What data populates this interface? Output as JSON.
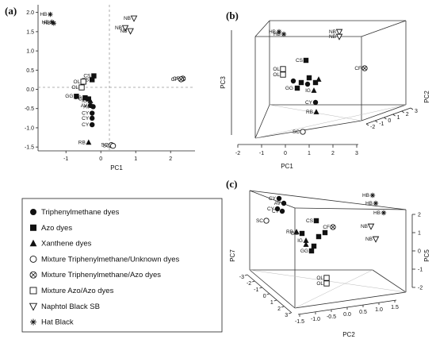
{
  "panels": {
    "a": "(a)",
    "b": "(b)",
    "c": "(c)"
  },
  "legend": [
    {
      "marker": "circle-filled",
      "label": "Triphenylmethane dyes"
    },
    {
      "marker": "square-filled",
      "label": "Azo dyes"
    },
    {
      "marker": "triangle-filled",
      "label": "Xanthene dyes"
    },
    {
      "marker": "circle-open",
      "label": "Mixture Triphenylmethane/Unknown dyes"
    },
    {
      "marker": "circle-cross",
      "label": "Mixture Triphenylmethane/Azo dyes"
    },
    {
      "marker": "square-open",
      "label": "Mixture Azo/Azo dyes"
    },
    {
      "marker": "triangle-down-open",
      "label": "Naphtol Black SB"
    },
    {
      "marker": "asterisk",
      "label": "Hat Black"
    }
  ],
  "chart_data": [
    {
      "id": "a",
      "type": "scatter",
      "xlabel": "PC1",
      "ylabel": "",
      "xlim": [
        -1.8,
        2.7
      ],
      "ylim": [
        -1.6,
        2.2
      ],
      "xticks": [
        "-1",
        "0",
        "1",
        "2"
      ],
      "yticks": [
        "-1.5",
        "-1.0",
        "-0.5",
        "0.0",
        "0.5",
        "1.0",
        "1.5",
        "2.0"
      ],
      "points": [
        {
          "label": "HB",
          "marker": "asterisk",
          "x": -1.45,
          "y": 1.95
        },
        {
          "label": "HB",
          "marker": "asterisk",
          "x": -1.4,
          "y": 1.75
        },
        {
          "label": "HB",
          "marker": "asterisk",
          "x": -1.35,
          "y": 1.72
        },
        {
          "label": "NB",
          "marker": "triangle-down-open",
          "x": 0.95,
          "y": 1.85
        },
        {
          "label": "NB",
          "marker": "triangle-down-open",
          "x": 0.7,
          "y": 1.6
        },
        {
          "label": "NB",
          "marker": "triangle-down-open",
          "x": 0.85,
          "y": 1.52
        },
        {
          "label": "CS",
          "marker": "square-filled",
          "x": -0.2,
          "y": 0.35
        },
        {
          "label": "CS",
          "marker": "square-filled",
          "x": -0.25,
          "y": 0.25
        },
        {
          "label": "OL",
          "marker": "square-open",
          "x": -0.5,
          "y": 0.2
        },
        {
          "label": "OL",
          "marker": "square-open",
          "x": -0.55,
          "y": 0.05
        },
        {
          "label": "CF",
          "marker": "circle-cross",
          "x": 2.35,
          "y": 0.28
        },
        {
          "label": "CF",
          "marker": "circle-cross",
          "x": 2.3,
          "y": 0.26
        },
        {
          "label": "GG",
          "marker": "square-filled",
          "x": -0.7,
          "y": -0.18
        },
        {
          "label": "GG",
          "marker": "square-filled",
          "x": -0.45,
          "y": -0.22
        },
        {
          "label": "CS",
          "marker": "square-filled",
          "x": -0.35,
          "y": -0.25
        },
        {
          "label": "IG",
          "marker": "triangle-filled",
          "x": -0.3,
          "y": -0.3
        },
        {
          "label": "AV",
          "marker": "circle-filled",
          "x": -0.3,
          "y": -0.42
        },
        {
          "label": "AV",
          "marker": "circle-filled",
          "x": -0.22,
          "y": -0.45
        },
        {
          "label": "CY",
          "marker": "circle-filled",
          "x": -0.25,
          "y": -0.62
        },
        {
          "label": "CY",
          "marker": "circle-filled",
          "x": -0.25,
          "y": -0.75
        },
        {
          "label": "CY",
          "marker": "circle-filled",
          "x": -0.25,
          "y": -0.92
        },
        {
          "label": "RB",
          "marker": "triangle-filled",
          "x": -0.35,
          "y": -1.38
        },
        {
          "label": "SC",
          "marker": "circle-open",
          "x": 0.3,
          "y": -1.45
        },
        {
          "label": "SC",
          "marker": "circle-open",
          "x": 0.35,
          "y": -1.47
        }
      ]
    },
    {
      "id": "b",
      "type": "scatter3d",
      "xlabel": "PC1",
      "ylabel": "PC2",
      "zlabel": "PC3",
      "xticks": [
        "-2",
        "-1",
        "0",
        "1",
        "2",
        "3"
      ],
      "yticks": [
        "-2",
        "-1",
        "0",
        "1",
        "2",
        "3"
      ],
      "points": [
        {
          "label": "HB",
          "marker": "asterisk"
        },
        {
          "label": "HB",
          "marker": "asterisk"
        },
        {
          "label": "NB",
          "marker": "triangle-down-open"
        },
        {
          "label": "NB",
          "marker": "triangle-down-open"
        },
        {
          "label": "OL",
          "marker": "square-open"
        },
        {
          "label": "OL",
          "marker": "square-open"
        },
        {
          "label": "CS",
          "marker": "square-filled"
        },
        {
          "label": "CF",
          "marker": "circle-cross"
        },
        {
          "label": "GG",
          "marker": "square-filled"
        },
        {
          "label": "CY",
          "marker": "circle-filled"
        },
        {
          "label": "IG",
          "marker": "triangle-filled"
        },
        {
          "label": "RB",
          "marker": "triangle-filled"
        },
        {
          "label": "SC",
          "marker": "circle-open"
        }
      ]
    },
    {
      "id": "c",
      "type": "scatter3d",
      "xlabel": "PC2",
      "ylabel": "PC7",
      "zlabel": "PC5",
      "xticks": [
        "-1.5",
        "-1.0",
        "-0.5",
        "0.0",
        "0.5",
        "1.0",
        "1.5"
      ],
      "yticks": [
        "-3",
        "-2",
        "-1",
        "0",
        "1",
        "2",
        "3"
      ],
      "zticks": [
        "-2",
        "-1",
        "0",
        "1",
        "2"
      ],
      "points": [
        {
          "label": "CY",
          "marker": "circle-filled"
        },
        {
          "label": "AV",
          "marker": "circle-filled"
        },
        {
          "label": "CY",
          "marker": "circle-filled"
        },
        {
          "label": "CY",
          "marker": "circle-filled"
        },
        {
          "label": "SC",
          "marker": "circle-open"
        },
        {
          "label": "HB",
          "marker": "asterisk"
        },
        {
          "label": "HB",
          "marker": "asterisk"
        },
        {
          "label": "HB",
          "marker": "asterisk"
        },
        {
          "label": "NB",
          "marker": "triangle-down-open"
        },
        {
          "label": "NB",
          "marker": "triangle-down-open"
        },
        {
          "label": "CS",
          "marker": "square-filled"
        },
        {
          "label": "CF",
          "marker": "circle-cross"
        },
        {
          "label": "RB",
          "marker": "triangle-filled"
        },
        {
          "label": "GG",
          "marker": "square-filled"
        },
        {
          "label": "IG",
          "marker": "triangle-filled"
        },
        {
          "label": "GG",
          "marker": "square-filled"
        },
        {
          "label": "OL",
          "marker": "square-open"
        },
        {
          "label": "OL",
          "marker": "square-open"
        }
      ]
    }
  ]
}
